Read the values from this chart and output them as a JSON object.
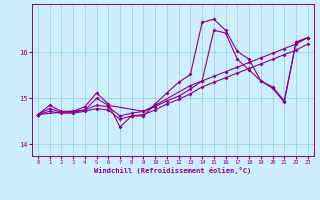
{
  "xlabel": "Windchill (Refroidissement éolien,°C)",
  "bg_color": "#cceeff",
  "line_color": "#880088",
  "grid_color": "#99cccc",
  "xlim": [
    -0.5,
    23.5
  ],
  "ylim": [
    13.75,
    17.05
  ],
  "yticks": [
    14,
    15,
    16
  ],
  "xticks": [
    0,
    1,
    2,
    3,
    4,
    5,
    6,
    7,
    8,
    9,
    10,
    11,
    12,
    13,
    14,
    15,
    16,
    17,
    18,
    19,
    20,
    21,
    22,
    23
  ],
  "series1": {
    "x": [
      0,
      1,
      2,
      3,
      4,
      5,
      6,
      7,
      8,
      9,
      10,
      11,
      12,
      13,
      14,
      15,
      16,
      17,
      18,
      19,
      20,
      21,
      22,
      23
    ],
    "y": [
      14.65,
      14.85,
      14.72,
      14.72,
      14.82,
      15.12,
      14.88,
      14.38,
      14.62,
      14.62,
      14.88,
      15.12,
      15.35,
      15.52,
      16.65,
      16.72,
      16.48,
      16.02,
      15.85,
      15.38,
      15.25,
      14.95,
      16.22,
      16.32
    ]
  },
  "series2": {
    "x": [
      0,
      1,
      2,
      3,
      4,
      5,
      6,
      7,
      8,
      9,
      10,
      11,
      12,
      13,
      14,
      15,
      16,
      17,
      18,
      19,
      20,
      21,
      22,
      23
    ],
    "y": [
      14.65,
      14.78,
      14.7,
      14.7,
      14.75,
      14.85,
      14.82,
      14.62,
      14.68,
      14.72,
      14.82,
      14.95,
      15.05,
      15.2,
      15.38,
      15.48,
      15.58,
      15.68,
      15.78,
      15.88,
      15.98,
      16.08,
      16.18,
      16.32
    ]
  },
  "series3": {
    "x": [
      0,
      4,
      5,
      6,
      9,
      10,
      13,
      14,
      15,
      16,
      17,
      18,
      19,
      20,
      21,
      22,
      23
    ],
    "y": [
      14.65,
      14.75,
      15.0,
      14.85,
      14.72,
      14.85,
      15.28,
      15.38,
      16.48,
      16.42,
      15.85,
      15.62,
      15.38,
      15.22,
      14.92,
      16.22,
      16.32
    ]
  },
  "series4": {
    "x": [
      0,
      1,
      2,
      3,
      4,
      5,
      6,
      7,
      8,
      9,
      10,
      11,
      12,
      13,
      14,
      15,
      16,
      17,
      18,
      19,
      20,
      21,
      22,
      23
    ],
    "y": [
      14.65,
      14.72,
      14.68,
      14.68,
      14.72,
      14.78,
      14.75,
      14.55,
      14.62,
      14.65,
      14.75,
      14.88,
      14.98,
      15.1,
      15.25,
      15.35,
      15.45,
      15.55,
      15.65,
      15.75,
      15.85,
      15.95,
      16.05,
      16.18
    ]
  }
}
